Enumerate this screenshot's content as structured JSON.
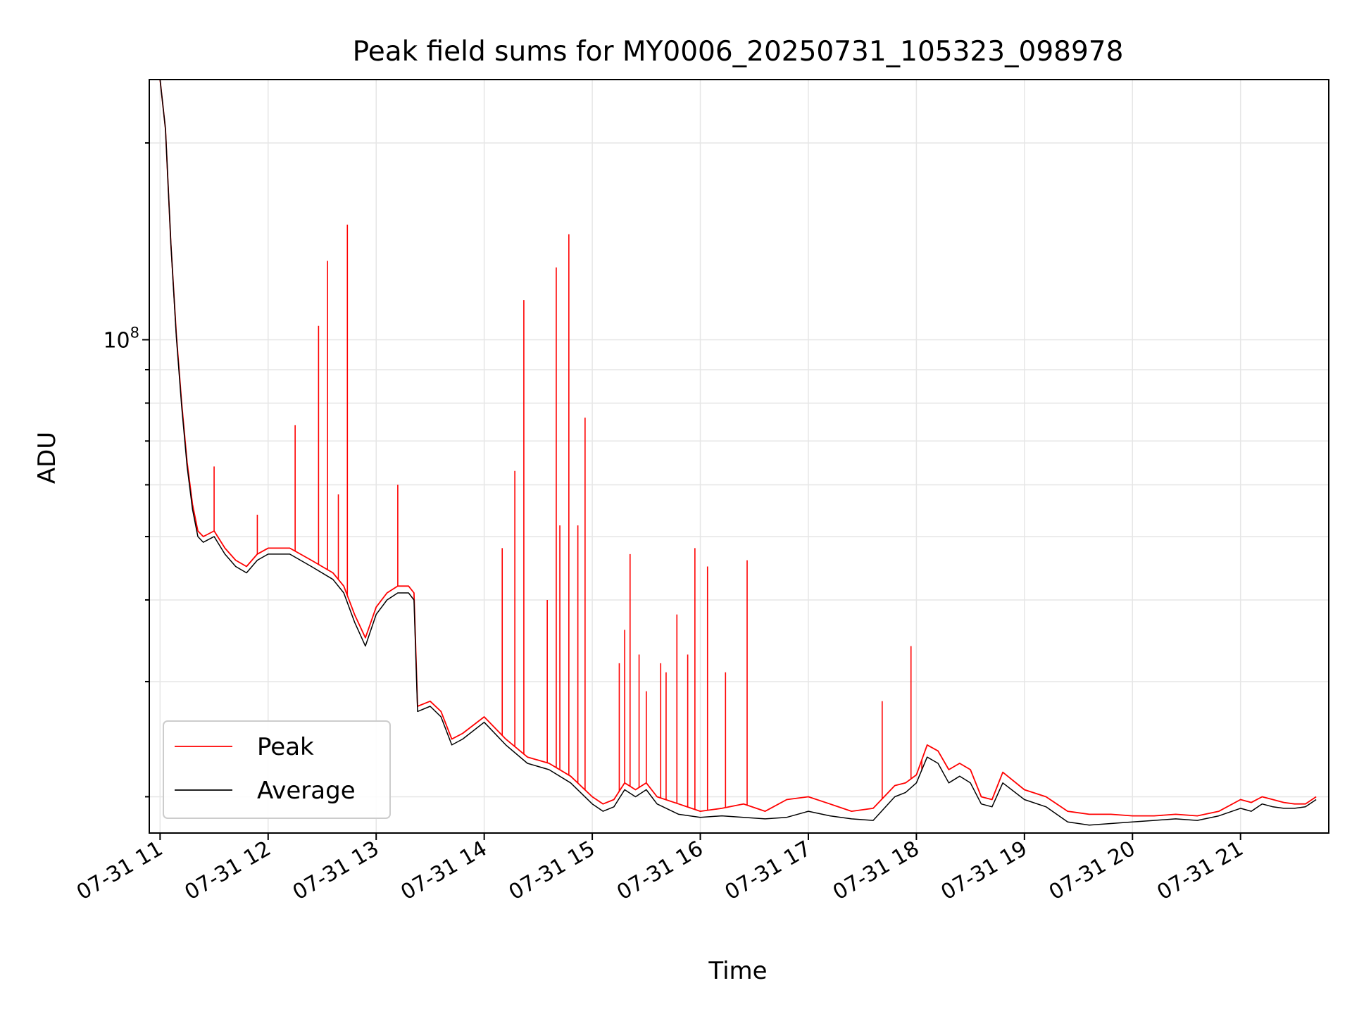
{
  "chart_data": {
    "type": "line",
    "title": "Peak field sums for MY0006_20250731_105323_098978",
    "xlabel": "Time",
    "ylabel": "ADU",
    "yscale": "log",
    "ylim": [
      17600000,
      250000000
    ],
    "xlim": [
      "2025-07-31 10:54",
      "2025-07-31 21:49"
    ],
    "grid": true,
    "legend_position": "lower-left",
    "x_ticks": [
      "07-31 11",
      "07-31 12",
      "07-31 13",
      "07-31 14",
      "07-31 15",
      "07-31 16",
      "07-31 17",
      "07-31 18",
      "07-31 19",
      "07-31 20",
      "07-31 21"
    ],
    "y_ticks": [
      {
        "base": "10",
        "exponent": "8",
        "value": 100000000
      }
    ],
    "y_minor_ticks": [
      20000000,
      30000000,
      40000000,
      50000000,
      60000000,
      70000000,
      80000000,
      90000000,
      200000000
    ],
    "x": [
      "2025-07-31 11:00",
      "2025-07-31 11:03",
      "2025-07-31 11:06",
      "2025-07-31 11:09",
      "2025-07-31 11:12",
      "2025-07-31 11:15",
      "2025-07-31 11:18",
      "2025-07-31 11:21",
      "2025-07-31 11:24",
      "2025-07-31 11:30",
      "2025-07-31 11:36",
      "2025-07-31 11:42",
      "2025-07-31 11:48",
      "2025-07-31 11:54",
      "2025-07-31 12:00",
      "2025-07-31 12:12",
      "2025-07-31 12:24",
      "2025-07-31 12:36",
      "2025-07-31 12:42",
      "2025-07-31 12:48",
      "2025-07-31 12:54",
      "2025-07-31 13:00",
      "2025-07-31 13:06",
      "2025-07-31 13:12",
      "2025-07-31 13:18",
      "2025-07-31 13:21",
      "2025-07-31 13:23",
      "2025-07-31 13:30",
      "2025-07-31 13:36",
      "2025-07-31 13:42",
      "2025-07-31 13:48",
      "2025-07-31 14:00",
      "2025-07-31 14:12",
      "2025-07-31 14:24",
      "2025-07-31 14:36",
      "2025-07-31 14:48",
      "2025-07-31 15:00",
      "2025-07-31 15:06",
      "2025-07-31 15:12",
      "2025-07-31 15:18",
      "2025-07-31 15:24",
      "2025-07-31 15:30",
      "2025-07-31 15:36",
      "2025-07-31 15:48",
      "2025-07-31 16:00",
      "2025-07-31 16:12",
      "2025-07-31 16:24",
      "2025-07-31 16:36",
      "2025-07-31 16:48",
      "2025-07-31 17:00",
      "2025-07-31 17:12",
      "2025-07-31 17:24",
      "2025-07-31 17:36",
      "2025-07-31 17:48",
      "2025-07-31 17:54",
      "2025-07-31 18:00",
      "2025-07-31 18:06",
      "2025-07-31 18:12",
      "2025-07-31 18:18",
      "2025-07-31 18:24",
      "2025-07-31 18:30",
      "2025-07-31 18:36",
      "2025-07-31 18:42",
      "2025-07-31 18:48",
      "2025-07-31 19:00",
      "2025-07-31 19:12",
      "2025-07-31 19:24",
      "2025-07-31 19:36",
      "2025-07-31 19:48",
      "2025-07-31 20:00",
      "2025-07-31 20:12",
      "2025-07-31 20:24",
      "2025-07-31 20:36",
      "2025-07-31 20:48",
      "2025-07-31 21:00",
      "2025-07-31 21:06",
      "2025-07-31 21:12",
      "2025-07-31 21:18",
      "2025-07-31 21:24",
      "2025-07-31 21:30",
      "2025-07-31 21:36",
      "2025-07-31 21:42"
    ],
    "series": [
      {
        "name": "Peak",
        "color": "#ff0000",
        "values": [
          250000000,
          210000000,
          140000000,
          102000000,
          80000000,
          65000000,
          56000000,
          51000000,
          50000000,
          51000000,
          48000000,
          46000000,
          45000000,
          47000000,
          48000000,
          48000000,
          46000000,
          44000000,
          42000000,
          38000000,
          35000000,
          39000000,
          41000000,
          42000000,
          42000000,
          41000000,
          27500000,
          28000000,
          27000000,
          24500000,
          25000000,
          26500000,
          24500000,
          23000000,
          22500000,
          21500000,
          20000000,
          19500000,
          19800000,
          21000000,
          20500000,
          21000000,
          20000000,
          19500000,
          19000000,
          19200000,
          19500000,
          19000000,
          19800000,
          20000000,
          19500000,
          19000000,
          19200000,
          20800000,
          21000000,
          21600000,
          24000000,
          23500000,
          22000000,
          22500000,
          22000000,
          20000000,
          19800000,
          21800000,
          20500000,
          20000000,
          19000000,
          18800000,
          18800000,
          18700000,
          18700000,
          18800000,
          18700000,
          19000000,
          19800000,
          19600000,
          20000000,
          19800000,
          19600000,
          19500000,
          19500000,
          20000000
        ]
      },
      {
        "name": "Average",
        "color": "#000000",
        "values": [
          250000000,
          210000000,
          140000000,
          101000000,
          79000000,
          64000000,
          55000000,
          50000000,
          49000000,
          50000000,
          47000000,
          45000000,
          44000000,
          46000000,
          47000000,
          47000000,
          45000000,
          43000000,
          41000000,
          37000000,
          34000000,
          38000000,
          40000000,
          41000000,
          41000000,
          40000000,
          27000000,
          27500000,
          26500000,
          24000000,
          24500000,
          26000000,
          24000000,
          22500000,
          22000000,
          21000000,
          19500000,
          19000000,
          19300000,
          20500000,
          20000000,
          20500000,
          19500000,
          18800000,
          18600000,
          18700000,
          18600000,
          18500000,
          18600000,
          19000000,
          18700000,
          18500000,
          18400000,
          20000000,
          20300000,
          21000000,
          23000000,
          22500000,
          21000000,
          21500000,
          21000000,
          19500000,
          19300000,
          21000000,
          19800000,
          19300000,
          18300000,
          18100000,
          18200000,
          18300000,
          18400000,
          18500000,
          18400000,
          18700000,
          19200000,
          19000000,
          19500000,
          19300000,
          19200000,
          19200000,
          19300000,
          19800000
        ]
      }
    ],
    "peak_spikes": [
      {
        "x": "2025-07-31 11:30",
        "y": 64000000
      },
      {
        "x": "2025-07-31 11:54",
        "y": 54000000
      },
      {
        "x": "2025-07-31 12:15",
        "y": 74000000
      },
      {
        "x": "2025-07-31 12:28",
        "y": 105000000
      },
      {
        "x": "2025-07-31 12:33",
        "y": 132000000
      },
      {
        "x": "2025-07-31 12:39",
        "y": 58000000
      },
      {
        "x": "2025-07-31 12:44",
        "y": 150000000
      },
      {
        "x": "2025-07-31 13:12",
        "y": 60000000
      },
      {
        "x": "2025-07-31 14:10",
        "y": 48000000
      },
      {
        "x": "2025-07-31 14:17",
        "y": 63000000
      },
      {
        "x": "2025-07-31 14:22",
        "y": 115000000
      },
      {
        "x": "2025-07-31 14:35",
        "y": 40000000
      },
      {
        "x": "2025-07-31 14:40",
        "y": 129000000
      },
      {
        "x": "2025-07-31 14:42",
        "y": 52000000
      },
      {
        "x": "2025-07-31 14:47",
        "y": 145000000
      },
      {
        "x": "2025-07-31 14:52",
        "y": 52000000
      },
      {
        "x": "2025-07-31 14:56",
        "y": 76000000
      },
      {
        "x": "2025-07-31 15:15",
        "y": 32000000
      },
      {
        "x": "2025-07-31 15:18",
        "y": 36000000
      },
      {
        "x": "2025-07-31 15:21",
        "y": 47000000
      },
      {
        "x": "2025-07-31 15:26",
        "y": 33000000
      },
      {
        "x": "2025-07-31 15:30",
        "y": 29000000
      },
      {
        "x": "2025-07-31 15:38",
        "y": 32000000
      },
      {
        "x": "2025-07-31 15:41",
        "y": 31000000
      },
      {
        "x": "2025-07-31 15:47",
        "y": 38000000
      },
      {
        "x": "2025-07-31 15:53",
        "y": 33000000
      },
      {
        "x": "2025-07-31 15:57",
        "y": 48000000
      },
      {
        "x": "2025-07-31 16:04",
        "y": 45000000
      },
      {
        "x": "2025-07-31 16:14",
        "y": 31000000
      },
      {
        "x": "2025-07-31 16:26",
        "y": 46000000
      },
      {
        "x": "2025-07-31 17:41",
        "y": 28000000
      },
      {
        "x": "2025-07-31 17:57",
        "y": 34000000
      },
      {
        "x": "2025-07-31 18:03",
        "y": 22000000
      }
    ]
  }
}
